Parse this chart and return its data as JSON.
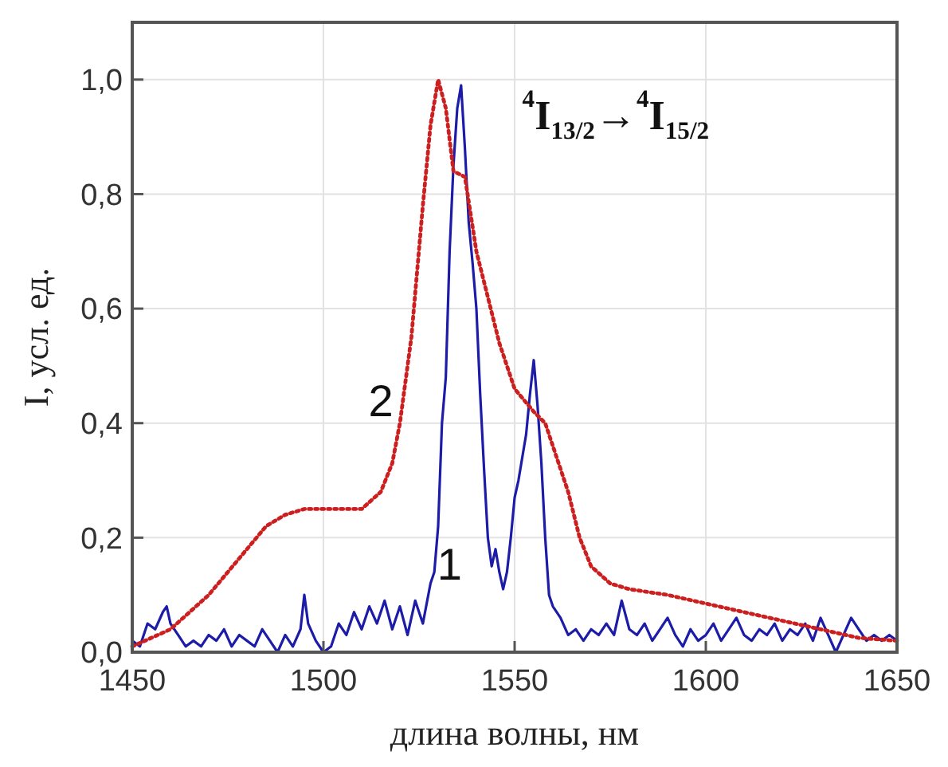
{
  "chart_data": {
    "type": "line",
    "xlabel": "длина волны, нм",
    "ylabel": "I, усл. ед.",
    "xlim": [
      1450,
      1650
    ],
    "xticks": [
      1450,
      1500,
      1550,
      1600,
      1650
    ],
    "ylim": [
      0,
      1.1
    ],
    "yticks": [
      {
        "value": 0,
        "label": "0,0"
      },
      {
        "value": 0.2,
        "label": "0,2"
      },
      {
        "value": 0.4,
        "label": "0,4"
      },
      {
        "value": 0.6,
        "label": "0,6"
      },
      {
        "value": 0.8,
        "label": "0,8"
      },
      {
        "value": 1,
        "label": "1,0"
      }
    ],
    "grid": true,
    "annotations": [
      "$^{4}$I$_{13/2}$→$^{4}$I$_{15/2}$"
    ],
    "series": [
      {
        "name": "1",
        "color": "#1c1ca8",
        "line_style": "solid",
        "x": [
          1450,
          1452,
          1454,
          1456,
          1458,
          1459,
          1460,
          1462,
          1464,
          1466,
          1468,
          1470,
          1472,
          1474,
          1476,
          1478,
          1480,
          1482,
          1484,
          1486,
          1488,
          1490,
          1492,
          1494,
          1495,
          1496,
          1498,
          1500,
          1502,
          1504,
          1506,
          1508,
          1510,
          1512,
          1514,
          1516,
          1518,
          1520,
          1522,
          1524,
          1526,
          1528,
          1529,
          1530,
          1531,
          1532,
          1533,
          1534,
          1535,
          1536,
          1537,
          1538,
          1539,
          1540,
          1541,
          1542,
          1543,
          1544,
          1545,
          1546,
          1547,
          1548,
          1549,
          1550,
          1551,
          1553,
          1554,
          1555,
          1556,
          1557,
          1558,
          1559,
          1560,
          1562,
          1564,
          1566,
          1568,
          1570,
          1572,
          1574,
          1576,
          1578,
          1580,
          1582,
          1584,
          1586,
          1588,
          1590,
          1592,
          1594,
          1596,
          1598,
          1600,
          1602,
          1604,
          1606,
          1608,
          1610,
          1612,
          1614,
          1616,
          1618,
          1620,
          1622,
          1624,
          1626,
          1628,
          1630,
          1632,
          1634,
          1636,
          1638,
          1640,
          1642,
          1644,
          1646,
          1648,
          1650
        ],
        "values": [
          0.02,
          0.01,
          0.05,
          0.04,
          0.07,
          0.08,
          0.05,
          0.03,
          0.01,
          0.02,
          0.01,
          0.03,
          0.02,
          0.04,
          0.01,
          0.03,
          0.02,
          0.01,
          0.04,
          0.02,
          0.0,
          0.03,
          0.01,
          0.04,
          0.1,
          0.05,
          0.02,
          0.0,
          0.01,
          0.05,
          0.03,
          0.07,
          0.04,
          0.08,
          0.05,
          0.09,
          0.04,
          0.08,
          0.03,
          0.09,
          0.05,
          0.12,
          0.14,
          0.22,
          0.4,
          0.48,
          0.7,
          0.85,
          0.95,
          0.99,
          0.88,
          0.75,
          0.68,
          0.6,
          0.45,
          0.32,
          0.2,
          0.15,
          0.18,
          0.14,
          0.11,
          0.14,
          0.2,
          0.27,
          0.3,
          0.38,
          0.45,
          0.51,
          0.43,
          0.33,
          0.2,
          0.1,
          0.08,
          0.06,
          0.03,
          0.04,
          0.02,
          0.04,
          0.03,
          0.05,
          0.03,
          0.09,
          0.04,
          0.03,
          0.05,
          0.02,
          0.04,
          0.06,
          0.03,
          0.01,
          0.04,
          0.02,
          0.03,
          0.05,
          0.02,
          0.04,
          0.06,
          0.03,
          0.02,
          0.04,
          0.03,
          0.05,
          0.02,
          0.04,
          0.03,
          0.05,
          0.02,
          0.06,
          0.03,
          0.0,
          0.03,
          0.06,
          0.04,
          0.02,
          0.03,
          0.02,
          0.03,
          0.02
        ]
      },
      {
        "name": "2",
        "color": "#cc2020",
        "line_style": "dotted",
        "x": [
          1450,
          1455,
          1460,
          1465,
          1470,
          1475,
          1480,
          1485,
          1490,
          1495,
          1500,
          1505,
          1510,
          1515,
          1518,
          1520,
          1523,
          1526,
          1528,
          1530,
          1532,
          1534,
          1537,
          1540,
          1543,
          1546,
          1550,
          1555,
          1558,
          1561,
          1564,
          1567,
          1570,
          1575,
          1580,
          1590,
          1600,
          1610,
          1620,
          1630,
          1640,
          1650
        ],
        "values": [
          0.01,
          0.025,
          0.04,
          0.07,
          0.1,
          0.14,
          0.18,
          0.22,
          0.24,
          0.25,
          0.25,
          0.25,
          0.25,
          0.28,
          0.33,
          0.4,
          0.55,
          0.78,
          0.92,
          1.0,
          0.95,
          0.84,
          0.83,
          0.7,
          0.62,
          0.54,
          0.46,
          0.42,
          0.4,
          0.34,
          0.28,
          0.2,
          0.15,
          0.12,
          0.11,
          0.1,
          0.085,
          0.07,
          0.055,
          0.04,
          0.025,
          0.02
        ]
      }
    ]
  }
}
